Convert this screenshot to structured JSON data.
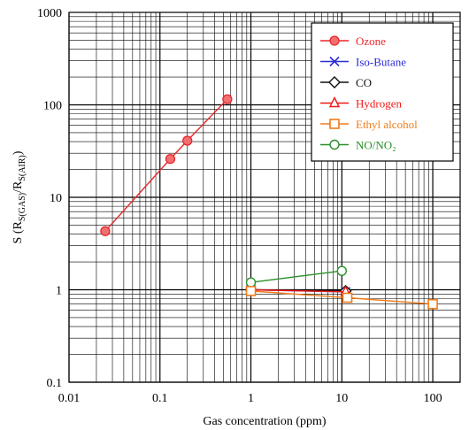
{
  "chart_data": {
    "type": "scatter",
    "title": "",
    "xlabel": "Gas concentration (ppm)",
    "ylabel_parts": [
      "S (R",
      "S(GAS)",
      "/R",
      "S(AIR)",
      ")"
    ],
    "xscale": "log",
    "yscale": "log",
    "xlim": [
      0.01,
      200
    ],
    "ylim": [
      0.1,
      1000
    ],
    "xticks": [
      0.01,
      0.1,
      1,
      10,
      100
    ],
    "xtick_labels": [
      "0.01",
      "0.1",
      "1",
      "10",
      "100"
    ],
    "yticks": [
      0.1,
      1,
      10,
      100,
      1000
    ],
    "ytick_labels": [
      "0.1",
      "1",
      "10",
      "100",
      "1000"
    ],
    "grid": true,
    "legend_position": "top-right",
    "series": [
      {
        "name": "Ozone",
        "color": "#e8262b",
        "marker": "circle-filled",
        "points": [
          [
            0.025,
            4.3
          ],
          [
            0.13,
            26
          ],
          [
            0.2,
            41
          ],
          [
            0.55,
            115
          ]
        ]
      },
      {
        "name": "Iso-Butane",
        "color": "#2a2ad6",
        "marker": "x",
        "points": [
          [
            1,
            1.0
          ],
          [
            11,
            0.95
          ]
        ]
      },
      {
        "name": "CO",
        "color": "#111111",
        "marker": "diamond",
        "points": [
          [
            1,
            1.0
          ],
          [
            11,
            0.97
          ]
        ]
      },
      {
        "name": "Hydrogen",
        "color": "#f01818",
        "marker": "triangle",
        "points": [
          [
            1,
            1.0
          ],
          [
            11,
            0.95
          ]
        ]
      },
      {
        "name": "Ethyl alcohol",
        "color": "#f07b1a",
        "marker": "square",
        "points": [
          [
            1,
            0.97
          ],
          [
            11.5,
            0.82
          ],
          [
            100,
            0.7
          ]
        ]
      },
      {
        "name": "NO/NO₂",
        "color": "#2a8f2a",
        "marker": "circle-open",
        "points": [
          [
            1,
            1.2
          ],
          [
            10,
            1.6
          ]
        ]
      }
    ]
  }
}
